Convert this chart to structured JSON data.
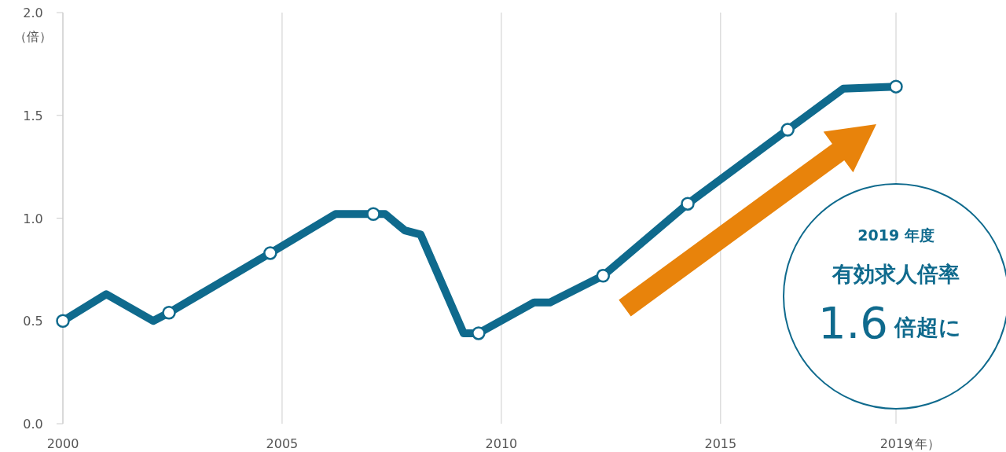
{
  "chart_data": {
    "type": "line",
    "ylabel": "（倍）",
    "xlabel": "（年）",
    "annotations": [
      "2019 年度",
      "有効求人倍率",
      "1.6",
      "倍超に"
    ],
    "xlim": [
      2000,
      2019
    ],
    "xticks": [
      2000,
      2005,
      2010,
      2015,
      2019
    ],
    "ylim": [
      0,
      2
    ],
    "yticks": [
      {
        "value": 0,
        "label": "0.0"
      },
      {
        "value": 0.5,
        "label": "0.5"
      },
      {
        "value": 1,
        "label": "1.0"
      },
      {
        "value": 1.5,
        "label": "1.5"
      },
      {
        "value": 2,
        "label": "2.0"
      }
    ],
    "grid": "x",
    "series": [
      {
        "color": "#0f6a8d",
        "marker": "none",
        "x": [
          2000.0,
          2000.99,
          2002.06,
          2002.42,
          2004.73,
          2006.22,
          2007.08,
          2007.35,
          2007.8,
          2008.16,
          2009.14,
          2009.48,
          2010.75,
          2011.11,
          2012.32,
          2014.25,
          2016.53,
          2017.8,
          2019.0
        ],
        "values": [
          0.5,
          0.63,
          0.5,
          0.54,
          0.83,
          1.02,
          1.02,
          1.02,
          0.94,
          0.92,
          0.44,
          0.44,
          0.59,
          0.59,
          0.72,
          1.07,
          1.43,
          1.63,
          1.64
        ]
      },
      {
        "type": "scatter",
        "color": "#0f6a8d",
        "marker": "circle",
        "x": [
          2000.0,
          2002.42,
          2004.73,
          2007.08,
          2009.48,
          2012.32,
          2014.25,
          2016.53,
          2019.0
        ],
        "values": [
          0.5,
          0.54,
          0.83,
          1.02,
          0.44,
          0.72,
          1.07,
          1.43,
          1.64
        ]
      }
    ]
  }
}
